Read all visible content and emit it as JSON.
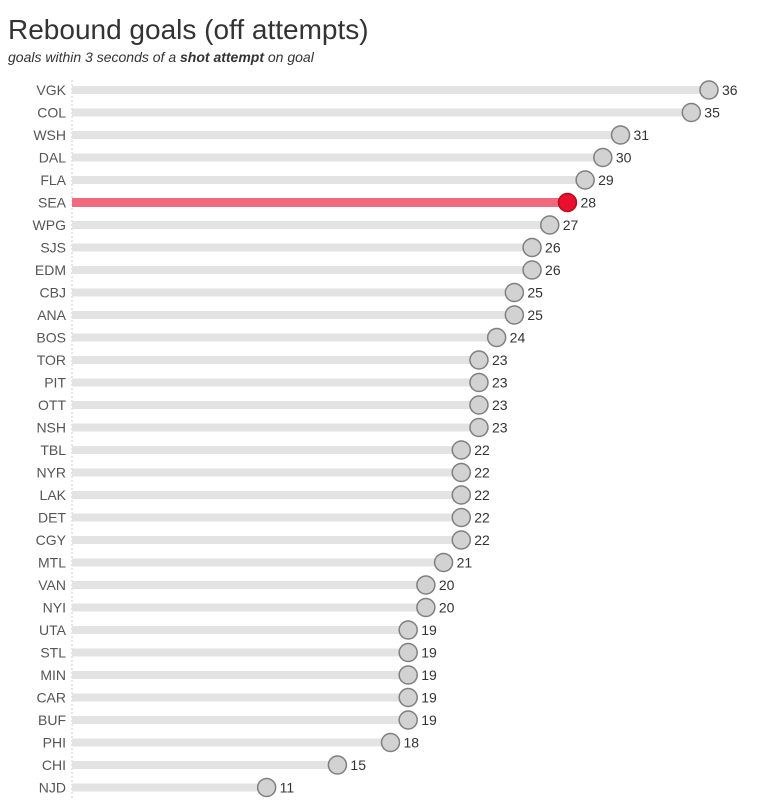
{
  "title": "Rebound goals (off attempts)",
  "subtitle": {
    "before": "goals within 3 seconds of a ",
    "bold": "shot attempt",
    "after": " on goal"
  },
  "colors": {
    "track": "#e3e3e3",
    "dot_fill": "#d2d2d2",
    "dot_stroke": "#7f7f7f",
    "highlight_bar": "#f0697d",
    "highlight_dot": "#e8102e",
    "highlight_dot_stroke": "#b40a20",
    "label_text": "#555555",
    "value_text": "#333333",
    "axis_line": "#cccccc"
  },
  "chart_data": {
    "type": "bar",
    "orientation": "horizontal",
    "style": "lollipop",
    "highlight": "SEA",
    "categories": [
      "VGK",
      "COL",
      "WSH",
      "DAL",
      "FLA",
      "SEA",
      "WPG",
      "SJS",
      "EDM",
      "CBJ",
      "ANA",
      "BOS",
      "TOR",
      "PIT",
      "OTT",
      "NSH",
      "TBL",
      "NYR",
      "LAK",
      "DET",
      "CGY",
      "MTL",
      "VAN",
      "NYI",
      "UTA",
      "STL",
      "MIN",
      "CAR",
      "BUF",
      "PHI",
      "CHI",
      "NJD"
    ],
    "values": [
      36,
      35,
      31,
      30,
      29,
      28,
      27,
      26,
      26,
      25,
      25,
      24,
      23,
      23,
      23,
      23,
      22,
      22,
      22,
      22,
      22,
      21,
      20,
      20,
      19,
      19,
      19,
      19,
      19,
      18,
      15,
      11
    ],
    "xlim": [
      0,
      36
    ],
    "grid": false,
    "legend": "none"
  }
}
